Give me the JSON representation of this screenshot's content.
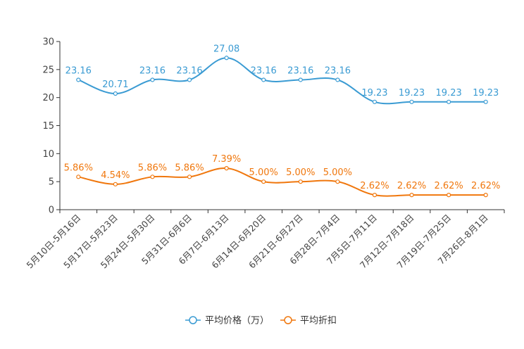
{
  "chart_data": {
    "type": "line",
    "title": "",
    "xlabel": "",
    "ylabel": "",
    "ylim": [
      0,
      30
    ],
    "yticks": [
      0,
      5,
      10,
      15,
      20,
      25,
      30
    ],
    "grid": false,
    "smooth": true,
    "categories": [
      "5月10日-5月16日",
      "5月17日-5月23日",
      "5月24日-5月30日",
      "5月31日-6月6日",
      "6月7日-6月13日",
      "6月14日-6月20日",
      "6月21日-6月27日",
      "6月28日-7月4日",
      "7月5日-7月11日",
      "7月12日-7月18日",
      "7月19日-7月25日",
      "7月26日-8月1日"
    ],
    "series": [
      {
        "name": "平均价格（万）",
        "color": "#3a9bd3",
        "values": [
          23.16,
          20.71,
          23.16,
          23.16,
          27.08,
          23.16,
          23.16,
          23.16,
          19.23,
          19.23,
          19.23,
          19.23
        ],
        "labels": [
          "23.16",
          "20.71",
          "23.16",
          "23.16",
          "27.08",
          "23.16",
          "23.16",
          "23.16",
          "19.23",
          "19.23",
          "19.23",
          "19.23"
        ]
      },
      {
        "name": "平均折扣",
        "color": "#f0770d",
        "values": [
          5.86,
          4.54,
          5.86,
          5.86,
          7.39,
          5.0,
          5.0,
          5.0,
          2.62,
          2.62,
          2.62,
          2.62
        ],
        "labels": [
          "5.86%",
          "4.54%",
          "5.86%",
          "5.86%",
          "7.39%",
          "5.00%",
          "5.00%",
          "5.00%",
          "2.62%",
          "2.62%",
          "2.62%",
          "2.62%"
        ]
      }
    ],
    "legend_position": "bottom-center"
  }
}
